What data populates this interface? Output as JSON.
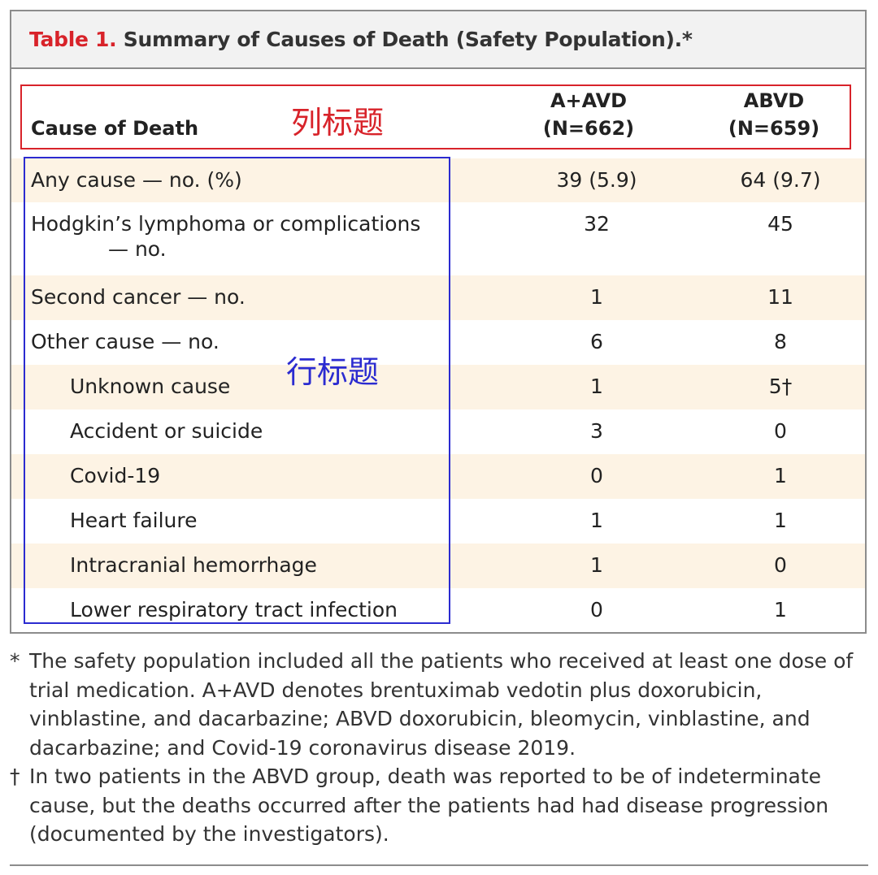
{
  "table": {
    "title_prefix": "Table 1.",
    "title_text": "Summary of Causes of Death (Safety Population).*",
    "headers": {
      "cause": "Cause of Death",
      "col_a_name": "A+AVD",
      "col_a_n": "(N=662)",
      "col_b_name": "ABVD",
      "col_b_n": "(N=659)"
    },
    "rows": [
      {
        "label": "Any cause — no. (%)",
        "a": "39 (5.9)",
        "b": "64 (9.7)"
      },
      {
        "label": "Hodgkin’s lymphoma or complications",
        "label_cont": "— no.",
        "a": "32",
        "b": "45"
      },
      {
        "label": "Second cancer — no.",
        "a": "1",
        "b": "11"
      },
      {
        "label": "Other cause — no.",
        "a": "6",
        "b": "8"
      },
      {
        "label": "Unknown cause",
        "a": "1",
        "b": "5†"
      },
      {
        "label": "Accident or suicide",
        "a": "3",
        "b": "0"
      },
      {
        "label": "Covid-19",
        "a": "0",
        "b": "1"
      },
      {
        "label": "Heart failure",
        "a": "1",
        "b": "1"
      },
      {
        "label": "Intracranial hemorrhage",
        "a": "1",
        "b": "0"
      },
      {
        "label": "Lower respiratory tract infection",
        "a": "0",
        "b": "1"
      }
    ]
  },
  "annotations": {
    "column_header_label": "列标题",
    "row_header_label": "行标题",
    "column_box_color": "#d8232a",
    "row_box_color": "#2b2bd0"
  },
  "footnotes": [
    {
      "mark": "*",
      "text": "The safety population included all the patients who received at least one dose of trial medication. A+AVD denotes brentuximab vedotin plus doxorubicin, vinblastine, and dacarbazine; ABVD doxorubicin, bleomycin, vinblastine, and dacarbazine; and Covid-19 coronavirus disease 2019."
    },
    {
      "mark": "†",
      "text": "In two patients in the ABVD group, death was reported to be of indeterminate cause, but the deaths occurred after the patients had had disease progression (documented by the investigators)."
    }
  ]
}
